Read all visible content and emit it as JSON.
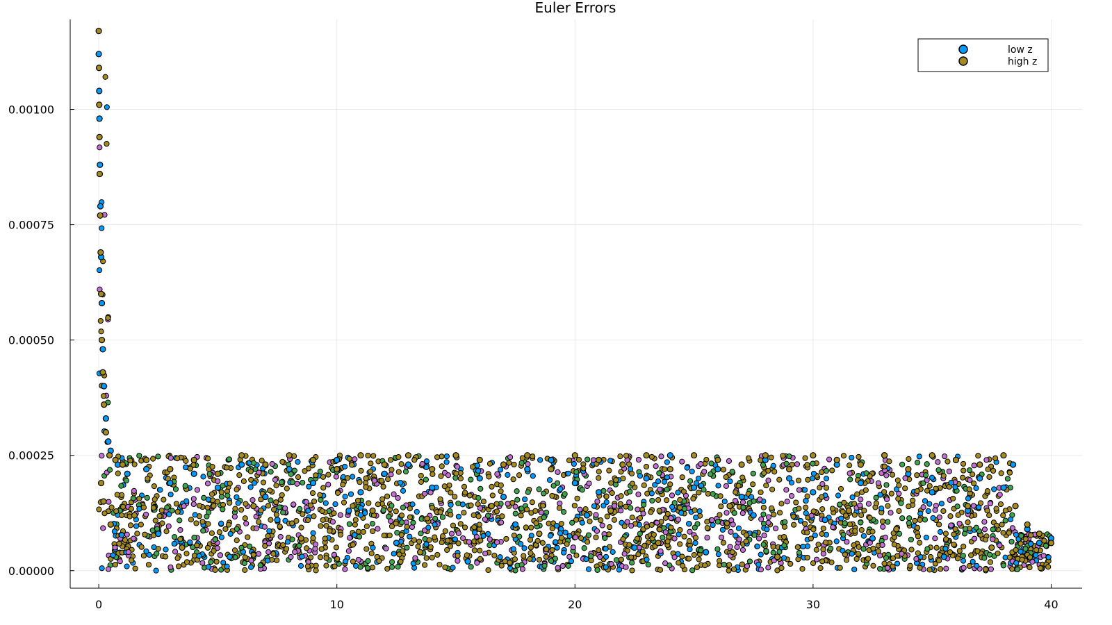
{
  "chart_data": {
    "type": "scatter",
    "title": "Euler Errors",
    "xlabel": "",
    "ylabel": "",
    "xlim": [
      -1.2,
      41.3
    ],
    "ylim": [
      -3.8e-05,
      0.001195
    ],
    "x_ticks": [
      0,
      10,
      20,
      30,
      40
    ],
    "x_tick_labels": [
      "0",
      "10",
      "20",
      "30",
      "40"
    ],
    "y_ticks": [
      0.0,
      0.00025,
      0.0005,
      0.00075,
      0.001
    ],
    "y_tick_labels": [
      "0.00000",
      "0.00025",
      "0.00050",
      "0.00075",
      "0.00100"
    ],
    "grid": true,
    "legend_position": "top-right",
    "series": [
      {
        "name": "low z",
        "color": "#009AFA",
        "points": [
          [
            0.0,
            0.00112
          ],
          [
            0.02,
            0.00104
          ],
          [
            0.03,
            0.00098
          ],
          [
            0.05,
            0.00088
          ],
          [
            0.07,
            0.00079
          ],
          [
            0.1,
            0.00068
          ],
          [
            0.13,
            0.00058
          ],
          [
            0.17,
            0.00048
          ],
          [
            0.22,
            0.0004
          ],
          [
            0.3,
            0.00033
          ],
          [
            0.4,
            0.00028
          ],
          [
            0.5,
            0.00026
          ],
          [
            0.8,
            0.00023
          ],
          [
            1.2,
            0.00021
          ],
          [
            2.0,
            0.00022
          ],
          [
            3.0,
            0.00019
          ],
          [
            4.0,
            0.00021
          ],
          [
            5.0,
            0.00018
          ],
          [
            6.0,
            0.00023
          ],
          [
            7.0,
            0.00016
          ],
          [
            8.0,
            0.00022
          ],
          [
            9.0,
            0.00019
          ],
          [
            10.0,
            0.00024
          ],
          [
            11.0,
            0.00017
          ],
          [
            12.0,
            0.00021
          ],
          [
            13.0,
            0.00023
          ],
          [
            14.0,
            0.00018
          ],
          [
            15.0,
            0.00025
          ],
          [
            16.0,
            0.0002
          ],
          [
            17.0,
            0.00016
          ],
          [
            18.0,
            0.00022
          ],
          [
            19.0,
            0.00024
          ],
          [
            20.0,
            0.00019
          ],
          [
            21.0,
            0.00017
          ],
          [
            22.0,
            0.00023
          ],
          [
            23.0,
            0.0002
          ],
          [
            24.0,
            0.00025
          ],
          [
            25.0,
            0.00018
          ],
          [
            26.0,
            0.00022
          ],
          [
            27.0,
            0.00016
          ],
          [
            28.0,
            0.00024
          ],
          [
            29.0,
            0.0002
          ],
          [
            30.0,
            0.00017
          ],
          [
            31.0,
            0.00023
          ],
          [
            32.0,
            0.00019
          ],
          [
            33.0,
            0.00025
          ],
          [
            34.0,
            0.00021
          ],
          [
            35.0,
            0.00017
          ],
          [
            36.0,
            0.00024
          ],
          [
            37.0,
            0.0002
          ],
          [
            38.0,
            0.00018
          ],
          [
            38.4,
            0.00023
          ],
          [
            39.0,
            9e-05
          ],
          [
            39.5,
            6e-05
          ],
          [
            40.0,
            7e-05
          ],
          [
            2.5,
            8e-05
          ],
          [
            7.5,
            0.00011
          ],
          [
            12.5,
            6e-05
          ],
          [
            17.5,
            0.0001
          ],
          [
            22.5,
            5e-05
          ],
          [
            27.5,
            0.00012
          ],
          [
            32.5,
            7e-05
          ],
          [
            36.5,
            0.00013
          ],
          [
            5.5,
            3e-05
          ],
          [
            15.5,
            2e-05
          ],
          [
            25.5,
            4e-05
          ],
          [
            35.5,
            3e-05
          ],
          [
            10.5,
            0.00013
          ],
          [
            20.5,
            0.00012
          ],
          [
            30.5,
            0.00011
          ]
        ]
      },
      {
        "name": "high z",
        "color": "#A58A1E",
        "points": [
          [
            0.0,
            0.00117
          ],
          [
            0.01,
            0.00109
          ],
          [
            0.02,
            0.00101
          ],
          [
            0.03,
            0.00094
          ],
          [
            0.04,
            0.00086
          ],
          [
            0.06,
            0.00077
          ],
          [
            0.08,
            0.00069
          ],
          [
            0.1,
            0.0006
          ],
          [
            0.13,
            0.0005
          ],
          [
            0.17,
            0.00043
          ],
          [
            0.22,
            0.00036
          ],
          [
            0.3,
            0.0003
          ],
          [
            0.45,
            0.00025
          ],
          [
            0.7,
            0.00024
          ],
          [
            1.0,
            0.00023
          ],
          [
            2.0,
            0.00024
          ],
          [
            3.0,
            0.00022
          ],
          [
            4.0,
            0.00024
          ],
          [
            5.0,
            0.00021
          ],
          [
            6.0,
            0.00025
          ],
          [
            7.0,
            0.00023
          ],
          [
            8.0,
            0.00025
          ],
          [
            9.0,
            0.00024
          ],
          [
            10.0,
            0.00022
          ],
          [
            11.0,
            0.00025
          ],
          [
            12.0,
            0.00023
          ],
          [
            13.0,
            0.00025
          ],
          [
            14.0,
            0.00022
          ],
          [
            15.0,
            0.00025
          ],
          [
            16.0,
            0.00024
          ],
          [
            17.0,
            0.00023
          ],
          [
            18.0,
            0.00025
          ],
          [
            19.0,
            0.00022
          ],
          [
            20.0,
            0.00025
          ],
          [
            21.0,
            0.00024
          ],
          [
            22.0,
            0.00023
          ],
          [
            23.0,
            0.00025
          ],
          [
            24.0,
            0.00022
          ],
          [
            25.0,
            0.00025
          ],
          [
            26.0,
            0.00024
          ],
          [
            27.0,
            0.00023
          ],
          [
            28.0,
            0.00025
          ],
          [
            29.0,
            0.00022
          ],
          [
            30.0,
            0.00025
          ],
          [
            31.0,
            0.00024
          ],
          [
            32.0,
            0.00023
          ],
          [
            33.0,
            0.00025
          ],
          [
            34.0,
            0.00022
          ],
          [
            35.0,
            0.00025
          ],
          [
            36.0,
            0.00024
          ],
          [
            37.0,
            0.00023
          ],
          [
            38.0,
            0.00025
          ],
          [
            38.5,
            0.00014
          ],
          [
            39.0,
            0.0001
          ],
          [
            39.5,
            8e-05
          ],
          [
            40.0,
            6e-05
          ],
          [
            1.5,
            0.00012
          ],
          [
            6.5,
            0.00014
          ],
          [
            11.5,
            0.00013
          ],
          [
            16.5,
            0.00014
          ],
          [
            21.5,
            0.00013
          ],
          [
            26.5,
            0.00014
          ],
          [
            31.5,
            0.00013
          ],
          [
            36.5,
            0.00014
          ],
          [
            3.5,
            5e-05
          ],
          [
            8.5,
            7e-05
          ],
          [
            13.5,
            4e-05
          ],
          [
            18.5,
            8e-05
          ],
          [
            23.5,
            6e-05
          ],
          [
            28.5,
            3e-05
          ],
          [
            33.5,
            9e-05
          ],
          [
            37.5,
            5e-05
          ],
          [
            0.5,
            0.0001
          ],
          [
            0.2,
            0.00015
          ],
          [
            0.1,
            0.00019
          ]
        ]
      }
    ]
  }
}
